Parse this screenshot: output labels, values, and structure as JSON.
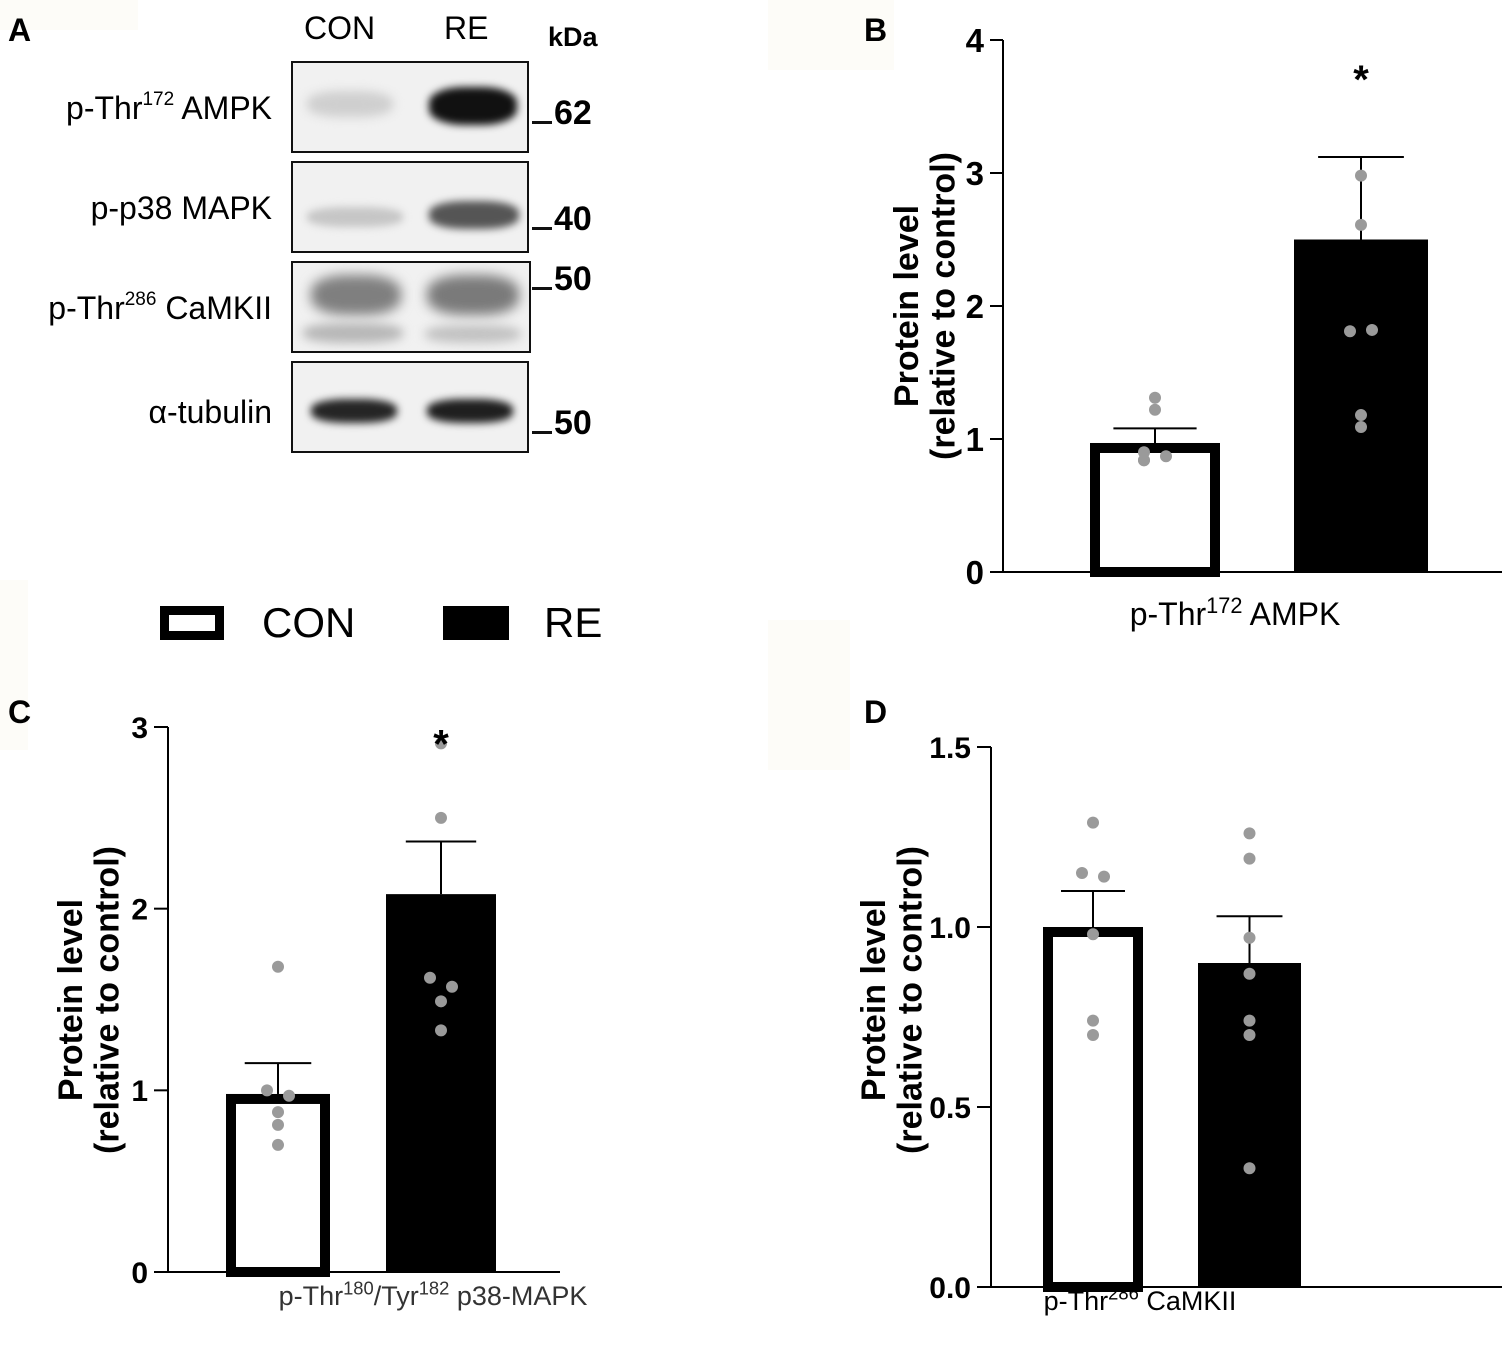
{
  "figure": {
    "panels": {
      "A": {
        "letter": "A",
        "lanes": [
          "CON",
          "RE"
        ],
        "kda_label": "kDa",
        "blots": [
          {
            "label_pre": "p-Thr",
            "label_sup": "172",
            "label_post": " AMPK",
            "mw": "62"
          },
          {
            "label_pre": "p-p38 MAPK",
            "label_sup": "",
            "label_post": "",
            "mw": "40"
          },
          {
            "label_pre": "p-Thr",
            "label_sup": "286",
            "label_post": " CaMKII",
            "mw": "50"
          },
          {
            "label_pre": "α-tubulin",
            "label_sup": "",
            "label_post": "",
            "mw": "50"
          }
        ]
      },
      "B": {
        "letter": "B"
      },
      "C": {
        "letter": "C"
      },
      "D": {
        "letter": "D"
      }
    },
    "legend": {
      "items": [
        {
          "label": "CON",
          "style": "open"
        },
        {
          "label": "RE",
          "style": "filled"
        }
      ]
    },
    "colors": {
      "con_fill": "#ffffff",
      "re_fill": "#000000",
      "bar_outline": "#000000",
      "dot": "#9a9a9a"
    }
  },
  "chart_data": [
    {
      "panel": "B",
      "type": "bar",
      "title": "",
      "xlabel_pre": "p-Thr",
      "xlabel_sup": "172",
      "xlabel_post": " AMPK",
      "ylabel_line1": "Protein level",
      "ylabel_line2": "(relative to control)",
      "ylim": [
        0,
        4
      ],
      "yticks": [
        "0",
        "1",
        "2",
        "3",
        "4"
      ],
      "categories": [
        "CON",
        "RE"
      ],
      "values": [
        0.97,
        2.5
      ],
      "error_upper": [
        1.08,
        3.12
      ],
      "points": [
        [
          0.84,
          0.9,
          0.84,
          0.87,
          1.31,
          1.22
        ],
        [
          2.98,
          2.61,
          1.81,
          1.82,
          1.18,
          1.09
        ]
      ],
      "significance": [
        "",
        "*"
      ]
    },
    {
      "panel": "C",
      "type": "bar",
      "title": "",
      "xlabel_pre": "p-Thr",
      "xlabel_sup": "180",
      "xlabel_mid": "/Tyr",
      "xlabel_sup2": "182",
      "xlabel_post": " p38-MAPK",
      "ylabel_line1": "Protein level",
      "ylabel_line2": "(relative to control)",
      "ylim": [
        0,
        3
      ],
      "yticks": [
        "0",
        "1",
        "2",
        "3"
      ],
      "categories": [
        "CON",
        "RE"
      ],
      "values": [
        0.98,
        2.08
      ],
      "error_upper": [
        1.15,
        2.37
      ],
      "points": [
        [
          1.68,
          1.0,
          0.97,
          0.88,
          0.81,
          0.7
        ],
        [
          2.91,
          2.5,
          1.62,
          1.57,
          1.49,
          1.33
        ]
      ],
      "significance": [
        "",
        "*"
      ]
    },
    {
      "panel": "D",
      "type": "bar",
      "title": "",
      "xlabel_pre": "p-Thr",
      "xlabel_sup": "286",
      "xlabel_post": " CaMKII",
      "ylabel_line1": "Protein level",
      "ylabel_line2": "(relative to control)",
      "ylim": [
        0,
        1.5
      ],
      "yticks": [
        "0.0",
        "0.5",
        "1.0",
        "1.5"
      ],
      "categories": [
        "CON",
        "RE"
      ],
      "values": [
        1.0,
        0.9
      ],
      "error_upper": [
        1.1,
        1.03
      ],
      "points": [
        [
          1.29,
          1.15,
          1.14,
          0.98,
          0.74,
          0.7
        ],
        [
          1.26,
          1.19,
          0.97,
          0.87,
          0.74,
          0.7,
          0.33
        ]
      ],
      "significance": [
        "",
        ""
      ]
    }
  ]
}
